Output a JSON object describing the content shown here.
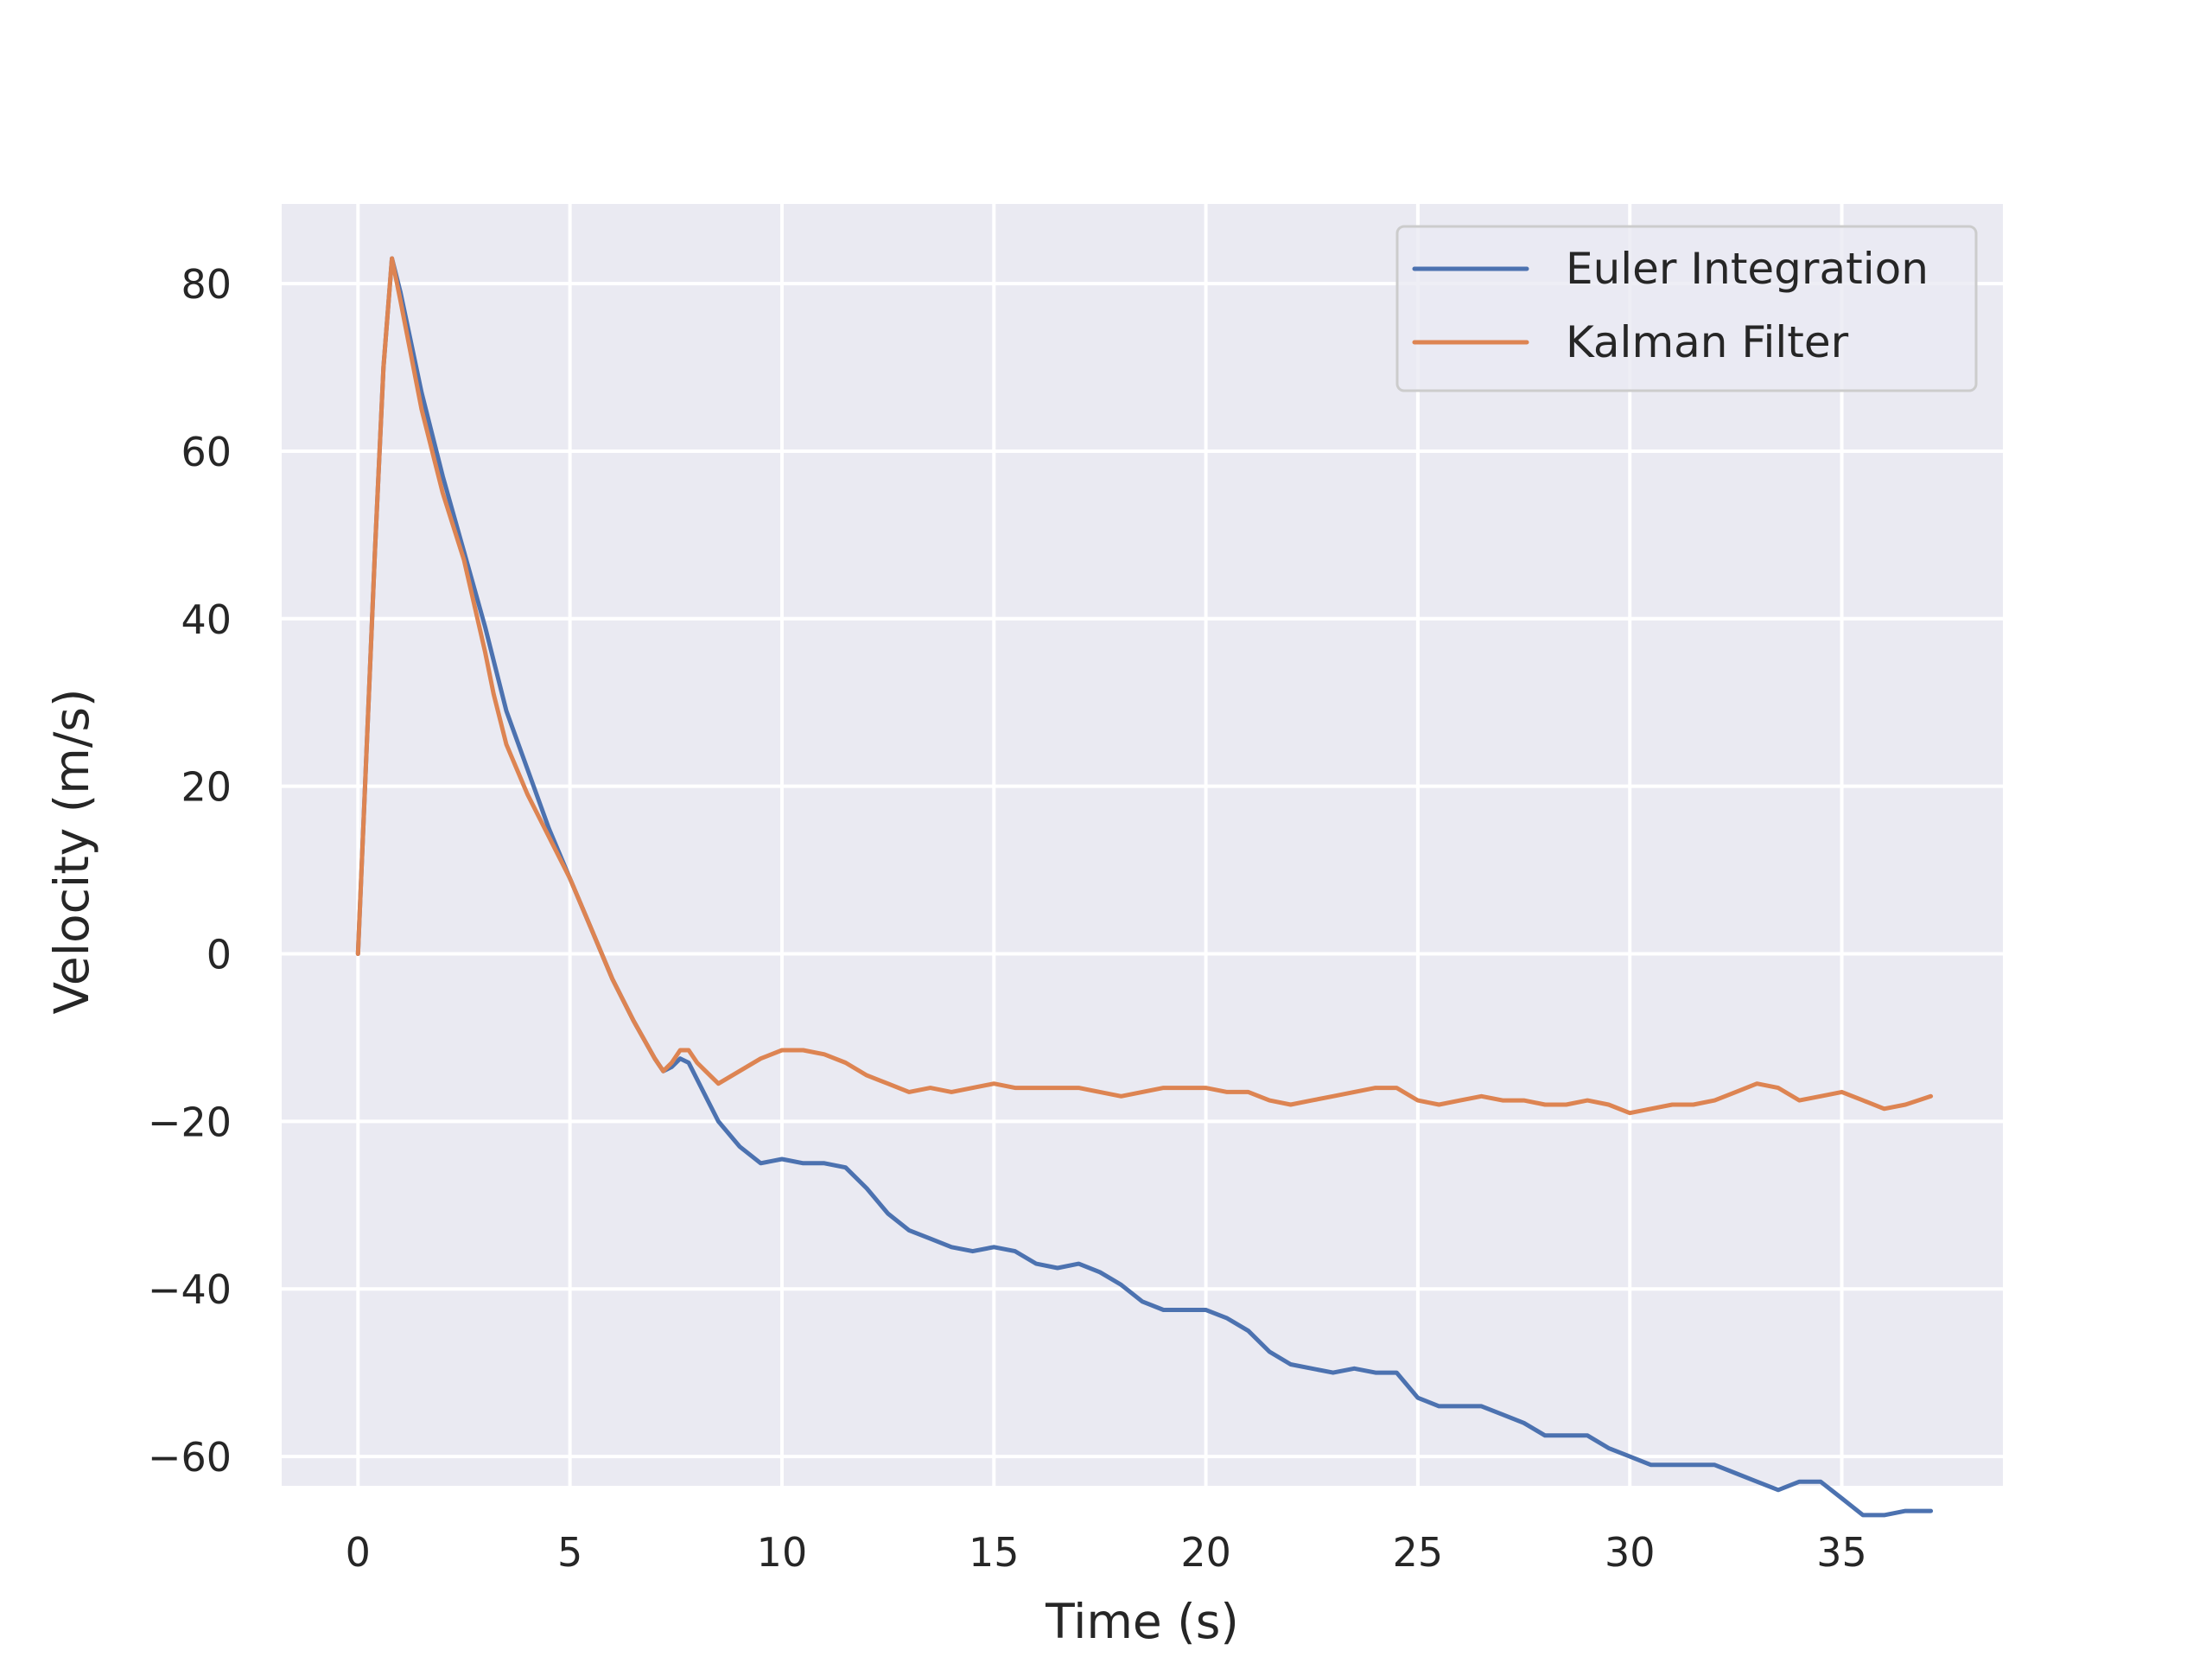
{
  "chart_data": {
    "type": "line",
    "title": "",
    "xlabel": "Time (s)",
    "ylabel": "Velocity (m/s)",
    "xlim": [
      -1.8,
      38.8
    ],
    "ylim": [
      -63.5,
      89.5
    ],
    "xticks": [
      0,
      5,
      10,
      15,
      20,
      25,
      30,
      35
    ],
    "yticks": [
      -60,
      -40,
      -20,
      0,
      20,
      40,
      60,
      80
    ],
    "xtick_labels": [
      "0",
      "5",
      "10",
      "15",
      "20",
      "25",
      "30",
      "35"
    ],
    "ytick_labels": [
      "−60",
      "−40",
      "−20",
      "0",
      "20",
      "40",
      "60",
      "80"
    ],
    "grid": true,
    "background": "#eaeaf2",
    "legend": {
      "position": "top-right"
    },
    "series": [
      {
        "name": "Euler Integration",
        "color": "#4c72b0",
        "x": [
          0,
          0.4,
          0.6,
          0.8,
          1.0,
          1.5,
          2.0,
          2.5,
          3.0,
          3.2,
          3.5,
          4.0,
          4.5,
          5.0,
          5.5,
          6.0,
          6.5,
          7.0,
          7.2,
          7.4,
          7.6,
          7.8,
          8.0,
          8.2,
          8.5,
          9.0,
          9.5,
          10.0,
          10.5,
          11.0,
          11.5,
          12.0,
          12.5,
          13.0,
          13.5,
          14.0,
          14.5,
          15.0,
          15.5,
          16.0,
          16.5,
          17.0,
          17.5,
          18.0,
          18.5,
          19.0,
          19.5,
          20.0,
          20.5,
          21.0,
          21.5,
          22.0,
          22.5,
          23.0,
          23.5,
          24.0,
          24.5,
          25.0,
          25.5,
          26.0,
          26.5,
          27.0,
          27.5,
          28.0,
          28.5,
          29.0,
          29.5,
          30.0,
          30.5,
          31.0,
          31.5,
          32.0,
          32.5,
          33.0,
          33.5,
          34.0,
          34.5,
          35.0,
          35.5,
          36.0,
          36.5,
          37.1
        ],
        "values": [
          0,
          48,
          70,
          83,
          79,
          67,
          57,
          48,
          39,
          35,
          29,
          22,
          15,
          9,
          3,
          -3,
          -8,
          -12.5,
          -14,
          -13.5,
          -12.5,
          -13,
          -15,
          -17,
          -20,
          -23,
          -25,
          -24.5,
          -25,
          -25,
          -25.5,
          -28,
          -31,
          -33,
          -34,
          -35,
          -35.5,
          -35,
          -35.5,
          -37,
          -37.5,
          -37,
          -38,
          -39.5,
          -41.5,
          -42.5,
          -42.5,
          -42.5,
          -43.5,
          -45,
          -47.5,
          -49,
          -49.5,
          -50,
          -49.5,
          -50,
          -50,
          -53,
          -54,
          -54,
          -54,
          -55,
          -56,
          -57.5,
          -57.5,
          -57.5,
          -59,
          -60,
          -61,
          -61,
          -61,
          -61,
          -62,
          -63,
          -64,
          -63,
          -63,
          -65,
          -67,
          -67,
          -66.5,
          -66.5
        ]
      },
      {
        "name": "Kalman Filter",
        "color": "#dd8452",
        "x": [
          0,
          0.4,
          0.6,
          0.8,
          1.0,
          1.5,
          2.0,
          2.5,
          3.0,
          3.2,
          3.5,
          4.0,
          4.5,
          5.0,
          5.5,
          6.0,
          6.5,
          7.0,
          7.2,
          7.4,
          7.6,
          7.8,
          8.0,
          8.2,
          8.5,
          9.0,
          9.5,
          10.0,
          10.5,
          11.0,
          11.5,
          12.0,
          12.5,
          13.0,
          13.5,
          14.0,
          14.5,
          15.0,
          15.5,
          16.0,
          16.5,
          17.0,
          17.5,
          18.0,
          18.5,
          19.0,
          19.5,
          20.0,
          20.5,
          21.0,
          21.5,
          22.0,
          22.5,
          23.0,
          23.5,
          24.0,
          24.5,
          25.0,
          25.5,
          26.0,
          26.5,
          27.0,
          27.5,
          28.0,
          28.5,
          29.0,
          29.5,
          30.0,
          30.5,
          31.0,
          31.5,
          32.0,
          32.5,
          33.0,
          33.5,
          34.0,
          34.5,
          35.0,
          35.5,
          36.0,
          36.5,
          37.1
        ],
        "values": [
          0,
          48,
          70,
          83,
          78,
          65,
          55,
          47,
          36,
          31,
          25,
          19,
          14,
          9,
          3,
          -3,
          -8,
          -12.5,
          -14,
          -13,
          -11.5,
          -11.5,
          -13,
          -14,
          -15.5,
          -14,
          -12.5,
          -11.5,
          -11.5,
          -12,
          -13,
          -14.5,
          -15.5,
          -16.5,
          -16,
          -16.5,
          -16,
          -15.5,
          -16,
          -16,
          -16,
          -16,
          -16.5,
          -17,
          -16.5,
          -16,
          -16,
          -16,
          -16.5,
          -16.5,
          -17.5,
          -18,
          -17.5,
          -17,
          -16.5,
          -16,
          -16,
          -17.5,
          -18,
          -17.5,
          -17,
          -17.5,
          -17.5,
          -18,
          -18,
          -17.5,
          -18,
          -19,
          -18.5,
          -18,
          -18,
          -17.5,
          -16.5,
          -15.5,
          -16,
          -17.5,
          -17,
          -16.5,
          -17.5,
          -18.5,
          -18,
          -17
        ]
      }
    ]
  }
}
